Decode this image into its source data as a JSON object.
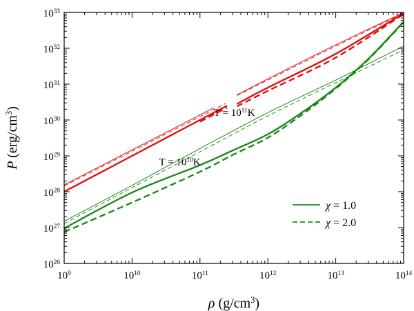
{
  "chart_data": {
    "type": "line",
    "title": "",
    "xlabel": {
      "symbol": "ρ",
      "text": "(g/cm",
      "sup": "3",
      "close": ")"
    },
    "ylabel": {
      "symbol": "P",
      "text": "(erg/cm",
      "sup": "3",
      "close": ")"
    },
    "xscale": "log",
    "yscale": "log",
    "xlim": [
      1000000000.0,
      100000000000000.0
    ],
    "ylim": [
      1e+26,
      1e+33
    ],
    "x_ticks": [
      {
        "base": "10",
        "exp": "9"
      },
      {
        "base": "10",
        "exp": "10"
      },
      {
        "base": "10",
        "exp": "11"
      },
      {
        "base": "10",
        "exp": "12"
      },
      {
        "base": "10",
        "exp": "13"
      },
      {
        "base": "10",
        "exp": "14"
      }
    ],
    "y_ticks": [
      {
        "base": "10",
        "exp": "26"
      },
      {
        "base": "10",
        "exp": "27"
      },
      {
        "base": "10",
        "exp": "28"
      },
      {
        "base": "10",
        "exp": "29"
      },
      {
        "base": "10",
        "exp": "30"
      },
      {
        "base": "10",
        "exp": "31"
      },
      {
        "base": "10",
        "exp": "32"
      },
      {
        "base": "10",
        "exp": "33"
      }
    ],
    "annotations": [
      {
        "name": "annotation-t-1e11",
        "prefix": "T = 10",
        "sup": "11",
        "suffix": "K",
        "x": 160000000000.0,
        "y": 1.3e+30,
        "color": "#000000"
      },
      {
        "name": "annotation-t-1e10",
        "prefix": "T = 10",
        "sup": "10",
        "suffix": "K",
        "x": 25000000000.0,
        "y": 5.5e+28,
        "color": "#000000"
      }
    ],
    "legend": {
      "position": "bottom-right",
      "entries": [
        {
          "name": "legend-chi-1",
          "symbol": "χ",
          "label": " = 1.0",
          "dash": "solid",
          "color": "#1a8a1a"
        },
        {
          "name": "legend-chi-2",
          "symbol": "χ",
          "label": " = 2.0",
          "dash": "dashed",
          "color": "#1a8a1a"
        }
      ]
    },
    "series": [
      {
        "name": "T=1e11K, chi=1.0, thin",
        "group": "T=1e11K",
        "color": "#e01010",
        "width": 1,
        "dash": "solid",
        "x": [
          1000000000.0,
          160000000000.0
        ],
        "y": [
          1.55e+28,
          2.2e+30
        ]
      },
      {
        "name": "T=1e11K, chi=1.0, thin (high density)",
        "group": "T=1e11K",
        "color": "#e01010",
        "width": 1,
        "dash": "solid",
        "x": [
          350000000000.0,
          1000000000000.0,
          10000000000000.0,
          100000000000000.0
        ],
        "y": [
          5e+30,
          1.4e+31,
          1.25e+32,
          1e+33
        ]
      },
      {
        "name": "T=1e11K, chi=2.0, thin",
        "group": "T=1e11K",
        "color": "#e01010",
        "width": 1,
        "dash": "dashed",
        "x": [
          1000000000.0,
          240000000000.0
        ],
        "y": [
          1.45e+28,
          2.9e+30
        ]
      },
      {
        "name": "T=1e11K, chi=2.0, thin (high density)",
        "group": "T=1e11K",
        "color": "#e01010",
        "width": 1,
        "dash": "dashed",
        "x": [
          350000000000.0,
          1000000000000.0,
          10000000000000.0,
          100000000000000.0
        ],
        "y": [
          4.8e+30,
          1.3e+31,
          1.15e+32,
          9.5e+32
        ]
      },
      {
        "name": "T=1e11K, chi=1.0, thick",
        "group": "T=1e11K",
        "color": "#e01010",
        "width": 2.4,
        "dash": "solid",
        "x": [
          1000000000.0,
          10000000000.0,
          100000000000.0,
          250000000000.0
        ],
        "y": [
          1e+28,
          1e+29,
          1e+30,
          2.5e+30
        ]
      },
      {
        "name": "T=1e11K, chi=1.0, thick (high density)",
        "group": "T=1e11K",
        "color": "#e01010",
        "width": 2.4,
        "dash": "solid",
        "x": [
          350000000000.0,
          1000000000000.0,
          10000000000000.0,
          100000000000000.0
        ],
        "y": [
          2.8e+30,
          8e+30,
          7e+31,
          9.5e+32
        ]
      },
      {
        "name": "T=1e11K, chi=2.0, thick",
        "group": "T=1e11K",
        "color": "#e01010",
        "width": 2.4,
        "dash": "dashed",
        "x": [
          100000000000.0,
          250000000000.0
        ],
        "y": [
          9e+29,
          2.2e+30
        ]
      },
      {
        "name": "T=1e11K, chi=2.0, thick (high density)",
        "group": "T=1e11K",
        "color": "#e01010",
        "width": 2.4,
        "dash": "dashed",
        "x": [
          350000000000.0,
          1000000000000.0,
          10000000000000.0,
          100000000000000.0
        ],
        "y": [
          2.4e+30,
          6.5e+30,
          5.5e+31,
          9e+32
        ]
      },
      {
        "name": "T=1e10K, chi=1.0, thin",
        "group": "T=1e10K",
        "color": "#1a8a1a",
        "width": 1,
        "dash": "solid",
        "x": [
          1000000000.0,
          10000000000.0,
          100000000000.0,
          1000000000000.0,
          10000000000000.0,
          100000000000000.0
        ],
        "y": [
          1.5e+27,
          1.5e+28,
          1.6e+29,
          1.6e+30,
          1.3e+31,
          1.15e+32
        ]
      },
      {
        "name": "T=1e10K, chi=2.0, thin",
        "group": "T=1e10K",
        "color": "#1a8a1a",
        "width": 1,
        "dash": "dashed",
        "x": [
          1000000000.0,
          10000000000.0,
          100000000000.0,
          1000000000000.0,
          10000000000000.0,
          100000000000000.0
        ],
        "y": [
          1.3e+27,
          1.3e+28,
          1.3e+29,
          1.3e+30,
          1.1e+31,
          9e+31
        ]
      },
      {
        "name": "T=1e10K, chi=1.0, thick",
        "group": "T=1e10K",
        "color": "#1a8a1a",
        "width": 2.4,
        "dash": "solid",
        "x": [
          1000000000.0,
          10000000000.0,
          100000000000.0,
          300000000000.0,
          1000000000000.0,
          3000000000000.0,
          10000000000000.0,
          30000000000000.0,
          100000000000000.0
        ],
        "y": [
          9.5e+26,
          9.5e+27,
          5.5e+28,
          1.4e+29,
          4e+29,
          1.5e+30,
          8e+30,
          5e+31,
          5.5e+32
        ]
      },
      {
        "name": "T=1e10K, chi=2.0, thick",
        "group": "T=1e10K",
        "color": "#1a8a1a",
        "width": 2.4,
        "dash": "dashed",
        "x": [
          1000000000.0,
          10000000000.0,
          100000000000.0,
          300000000000.0,
          1000000000000.0,
          3000000000000.0,
          10000000000000.0,
          30000000000000.0,
          100000000000000.0
        ],
        "y": [
          7.5e+26,
          5e+27,
          3.6e+28,
          1.05e+29,
          3.2e+29,
          1.3e+30,
          7.5e+30,
          4.8e+31,
          5.3e+32
        ]
      }
    ]
  }
}
